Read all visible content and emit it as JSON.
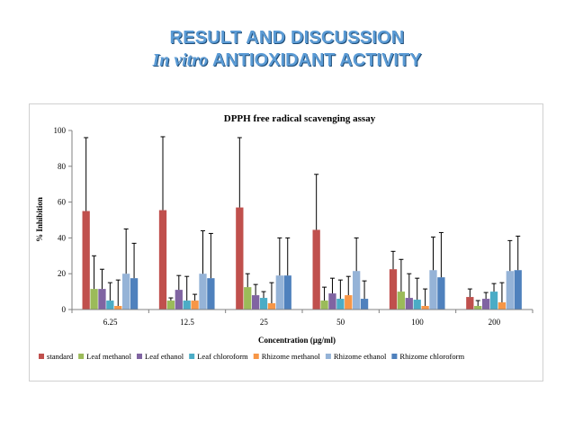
{
  "slide": {
    "title_line1": "RESULT AND DISCUSSION",
    "title_line2_italic": "In vitro",
    "title_line2_rest": "ANTIOXIDANT ACTIVITY"
  },
  "chart_data": {
    "type": "bar",
    "title": "DPPH free radical scavenging assay",
    "xlabel": "Concentration (µg/ml)",
    "ylabel": "% Inhibition",
    "ylim": [
      0,
      100
    ],
    "yticks": [
      0,
      20,
      40,
      60,
      80,
      100
    ],
    "categories": [
      "6.25",
      "12.5",
      "25",
      "50",
      "100",
      "200"
    ],
    "legend_position": "bottom",
    "error_bars": true,
    "series": [
      {
        "name": "standard",
        "color": "#c0504d",
        "values": [
          55,
          55.5,
          57,
          44.5,
          22.5,
          7
        ],
        "errors": [
          41,
          41,
          39,
          31,
          10,
          4.5
        ]
      },
      {
        "name": "Leaf methanol",
        "color": "#9bbb59",
        "values": [
          11.5,
          5,
          12.5,
          5,
          10,
          2
        ],
        "errors": [
          18.5,
          1.5,
          7.5,
          7.5,
          18,
          3
        ]
      },
      {
        "name": "Leaf ethanol",
        "color": "#8064a2",
        "values": [
          11.5,
          11,
          8,
          9,
          6.5,
          6
        ],
        "errors": [
          11,
          8,
          6,
          8.5,
          13.5,
          3.5
        ]
      },
      {
        "name": "Leaf chloroform",
        "color": "#4bacc6",
        "values": [
          5,
          5,
          6.5,
          6,
          5.5,
          10
        ],
        "errors": [
          10,
          13.5,
          3.5,
          10.5,
          12,
          4.5
        ]
      },
      {
        "name": "Rhizome methanol",
        "color": "#f79646",
        "values": [
          2,
          5,
          3.5,
          8,
          2,
          4
        ],
        "errors": [
          14.5,
          3.5,
          11.5,
          10.5,
          9.5,
          11
        ]
      },
      {
        "name": "Rhizome ethanol",
        "color": "#95b3d7",
        "values": [
          20,
          20,
          19,
          21.5,
          22,
          21.5
        ],
        "errors": [
          25,
          24,
          21,
          18.5,
          18.5,
          17
        ]
      },
      {
        "name": "Rhizome chloroform",
        "color": "#4f81bd",
        "values": [
          17.5,
          17.5,
          19,
          6,
          18,
          22
        ],
        "errors": [
          19.5,
          25,
          21,
          10,
          25,
          19
        ]
      }
    ]
  }
}
